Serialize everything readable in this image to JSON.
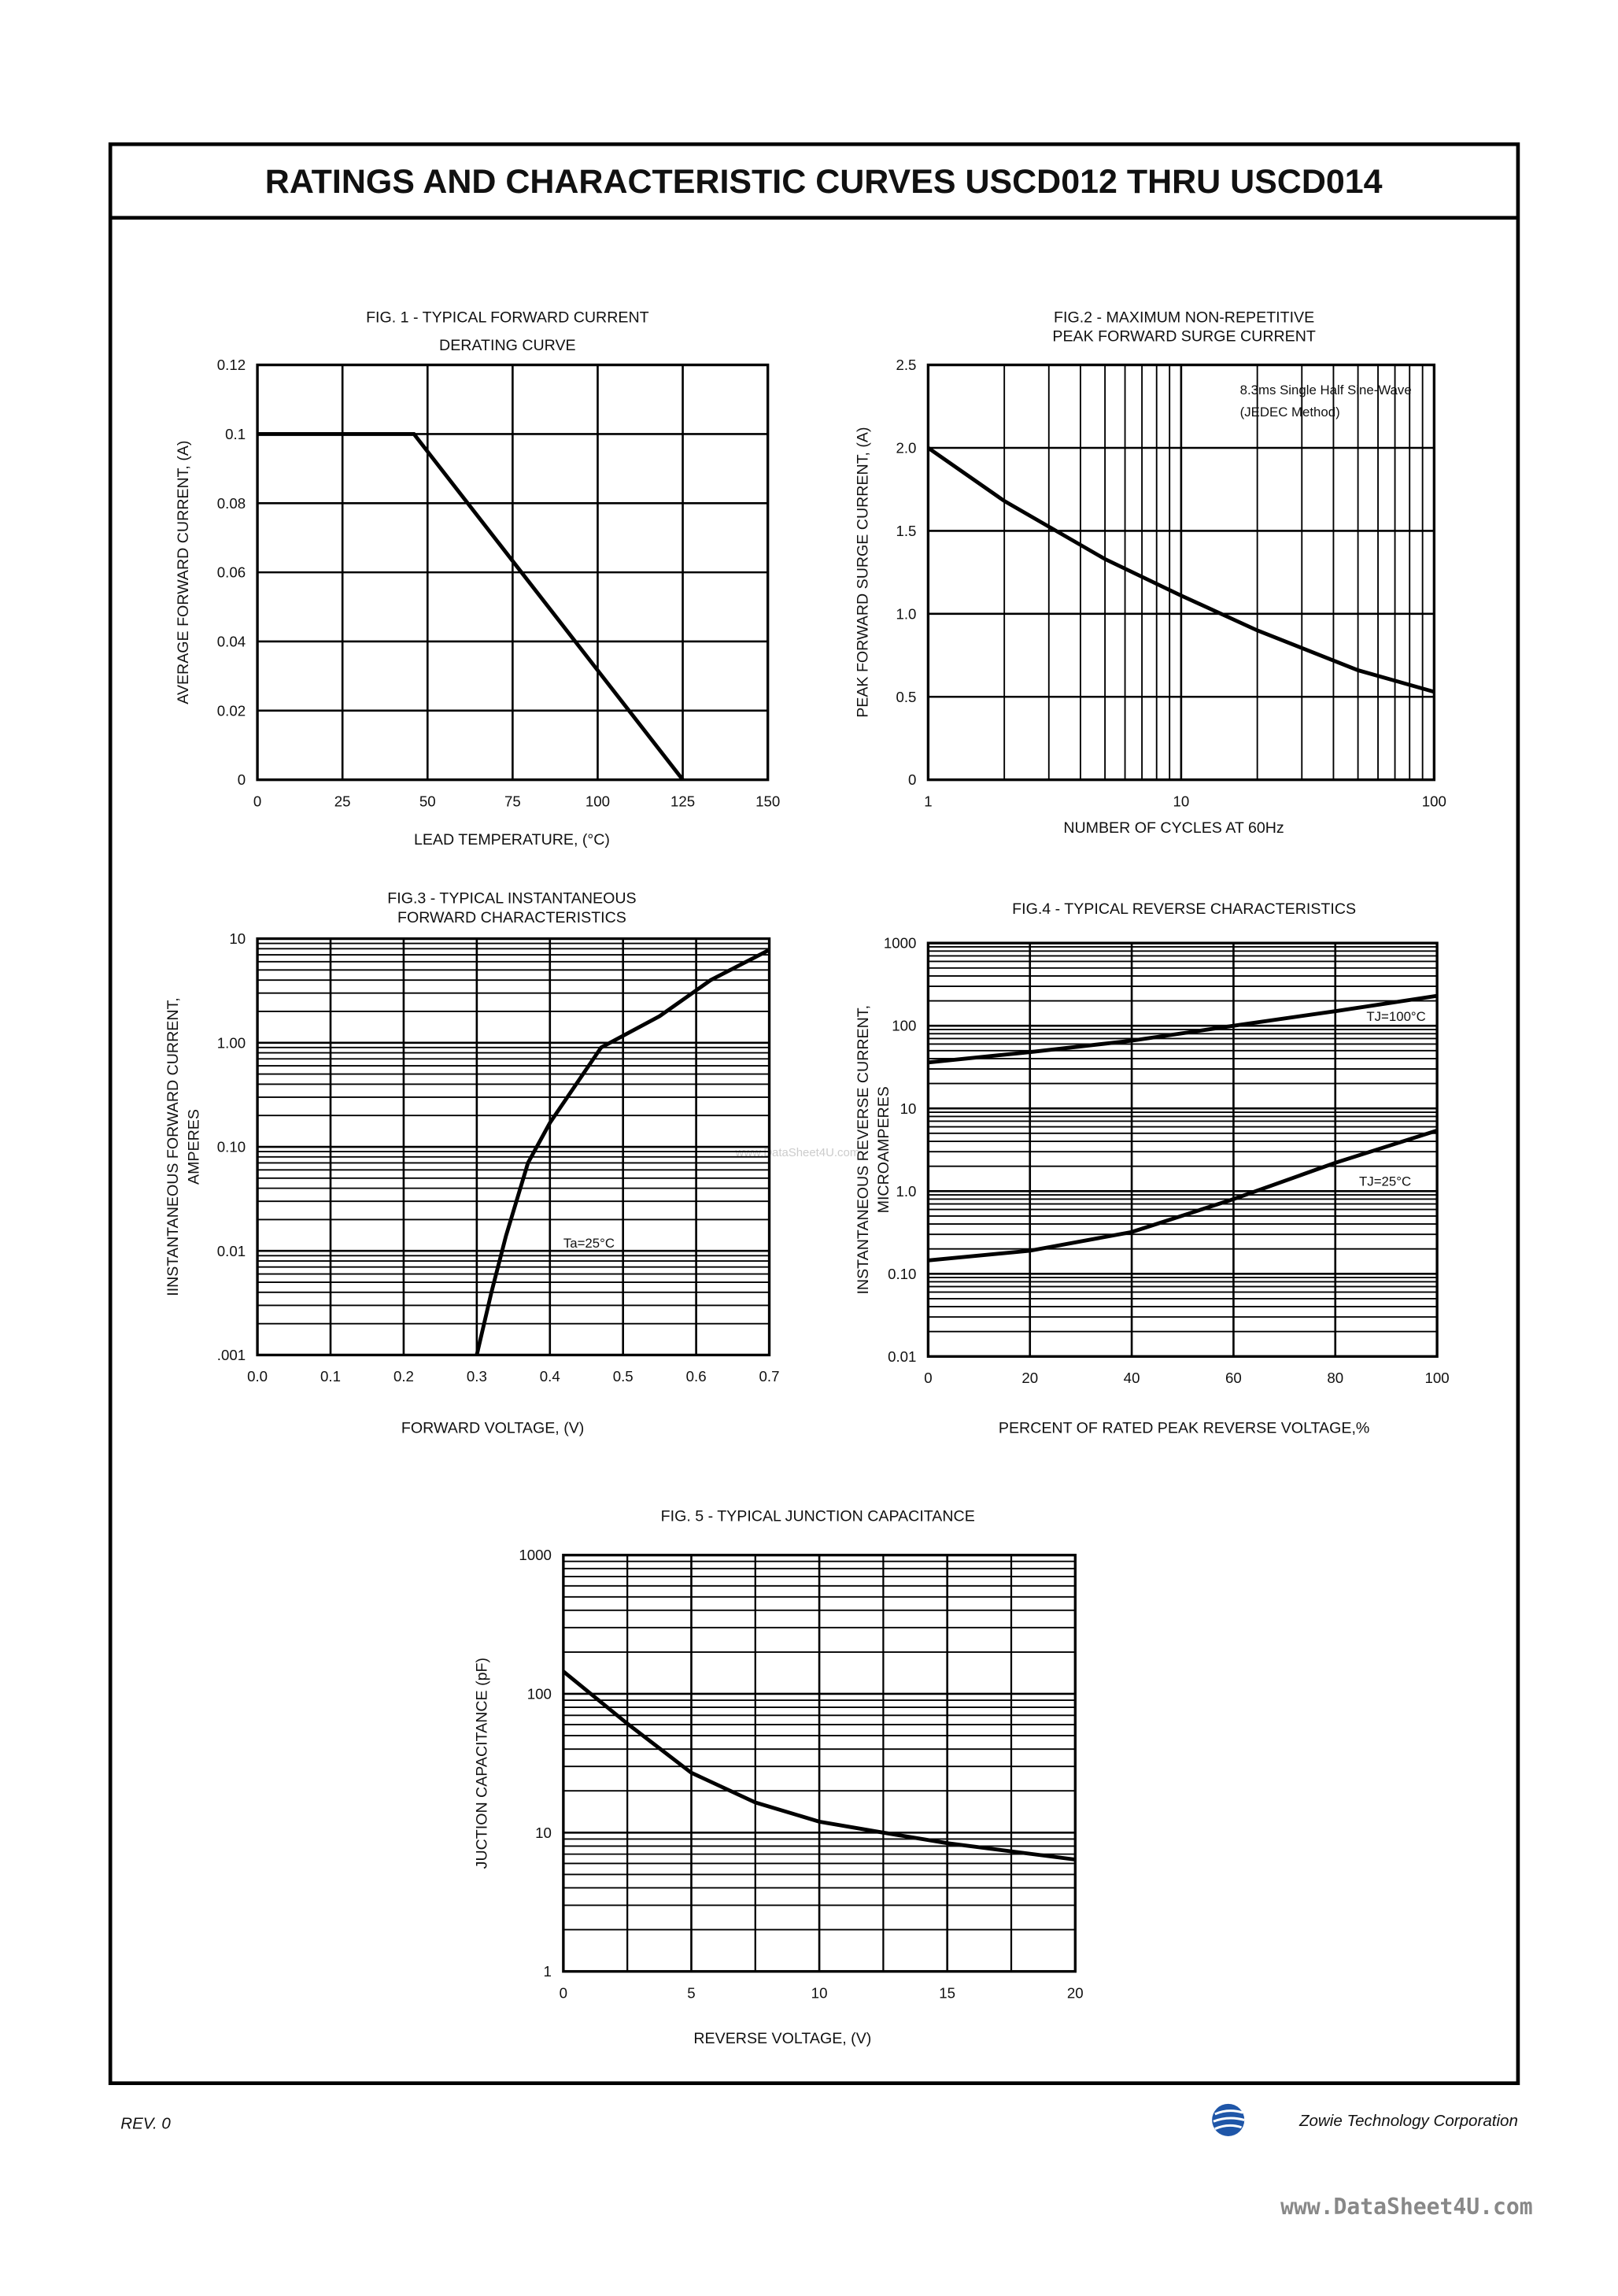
{
  "header": {
    "title": "RATINGS AND CHARACTERISTIC CURVES USCD012 THRU USCD014"
  },
  "chart_data": [
    {
      "type": "line",
      "title": [
        "FIG. 1  - TYPICAL FORWARD CURRENT",
        "DERATING CURVE"
      ],
      "ylabel": [
        "AVERAGE FORWARD CURRENT, (A)"
      ],
      "xlabel": "LEAD  TEMPERATURE, (°C)",
      "xscale": "linear",
      "yscale": "linear",
      "xlim": [
        0,
        150
      ],
      "xticks": [
        0,
        25,
        50,
        75,
        100,
        125,
        150
      ],
      "ylim": [
        0,
        0.12
      ],
      "yticks": [
        0,
        0.02,
        0.04,
        0.06,
        0.08,
        0.1,
        0.12
      ],
      "grid": true,
      "x": [
        0,
        46,
        125
      ],
      "series": [
        {
          "color": "#000000",
          "values": [
            0.1,
            0.1,
            0
          ]
        }
      ]
    },
    {
      "type": "line",
      "title": [
        "FIG.2 - MAXIMUM NON-REPETITIVE",
        "PEAK FORWARD SURGE CURRENT"
      ],
      "ylabel": [
        "PEAK FORWARD SURGE CURRENT, (A)"
      ],
      "xlabel": "NUMBER OF CYCLES AT 60Hz",
      "annotations": [
        "8.3ms Single Half Sine-Wave",
        "(JEDEC Method)"
      ],
      "xscale": "log",
      "yscale": "linear",
      "xlim": [
        1,
        100
      ],
      "xticks": [
        1,
        10,
        100
      ],
      "ylim": [
        0,
        2.5
      ],
      "yticks": [
        0,
        0.5,
        {
          "value": 1,
          "label": "1.0"
        },
        1.5,
        {
          "value": 2,
          "label": "2.0"
        },
        2.5
      ],
      "grid": true,
      "x": [
        1,
        2,
        5,
        10,
        20,
        50,
        100
      ],
      "series": [
        {
          "color": "#000000",
          "values": [
            2.0,
            1.68,
            1.33,
            1.11,
            0.9,
            0.66,
            0.53
          ]
        }
      ]
    },
    {
      "type": "line",
      "title": [
        "FIG.3 - TYPICAL INSTANTANEOUS",
        "FORWARD CHARACTERISTICS"
      ],
      "ylabel": [
        "IINSTANTANEOUS FORWARD CURRENT,",
        "AMPERES"
      ],
      "xlabel": "FORWARD  VOLTAGE, (V)",
      "annotations": [
        "Ta=25°C"
      ],
      "xscale": "linear",
      "yscale": "log",
      "xlim": [
        0,
        0.7
      ],
      "xticks": [
        {
          "value": 0,
          "label": "0.0"
        },
        0.1,
        0.2,
        0.3,
        0.4,
        0.5,
        0.6,
        0.7
      ],
      "ylim": [
        0.001,
        10
      ],
      "yticks": [
        {
          "value": 0.001,
          "label": ".001"
        },
        0.01,
        {
          "value": 0.1,
          "label": "0.10"
        },
        {
          "value": 1,
          "label": "1.00"
        },
        10
      ],
      "grid": true,
      "x": [
        0.3,
        0.32,
        0.34,
        0.37,
        0.4,
        0.47,
        0.55,
        0.62,
        0.7
      ],
      "series": [
        {
          "color": "#000000",
          "values": [
            0.001,
            0.004,
            0.014,
            0.07,
            0.17,
            0.9,
            1.8,
            4.0,
            7.8
          ]
        }
      ]
    },
    {
      "type": "line",
      "title": [
        "FIG.4 - TYPICAL REVERSE CHARACTERISTICS"
      ],
      "ylabel": [
        "INSTANTANEOUS REVERSE CURRENT,",
        "MICROAMPERES"
      ],
      "xlabel": "PERCENT OF RATED PEAK REVERSE VOLTAGE,%",
      "xscale": "linear",
      "yscale": "log",
      "xlim": [
        0,
        100
      ],
      "xticks": [
        0,
        20,
        40,
        60,
        80,
        100
      ],
      "ylim": [
        0.01,
        1000
      ],
      "yticks": [
        0.01,
        {
          "value": 0.1,
          "label": "0.10"
        },
        {
          "value": 1,
          "label": "1.0"
        },
        10,
        100,
        1000
      ],
      "grid": true,
      "x": [
        0,
        20,
        40,
        60,
        80,
        100
      ],
      "series": [
        {
          "name": "TJ=100°C",
          "color": "#000000",
          "values": [
            36,
            48,
            66,
            100,
            150,
            230
          ]
        },
        {
          "name": "TJ=25°C",
          "color": "#000000",
          "values": [
            0.145,
            0.19,
            0.32,
            0.8,
            2.2,
            5.4
          ]
        }
      ]
    },
    {
      "type": "line",
      "title": [
        "FIG. 5 - TYPICAL JUNCTION CAPACITANCE"
      ],
      "ylabel": [
        "JUCTION CAPACITANCE  (pF)"
      ],
      "xlabel": "REVERSE  VOLTAGE, (V)",
      "xscale": "linear",
      "yscale": "log",
      "xlim": [
        0,
        20
      ],
      "xticks": [
        0,
        5,
        10,
        15,
        20
      ],
      "ylim": [
        1,
        1000
      ],
      "yticks": [
        1,
        10,
        100,
        1000
      ],
      "grid": true,
      "x": [
        0,
        2.5,
        5,
        7.5,
        10,
        12.5,
        15,
        20
      ],
      "series": [
        {
          "color": "#000000",
          "values": [
            145,
            61,
            27,
            16.5,
            12,
            10,
            8.4,
            6.4
          ]
        }
      ]
    }
  ],
  "footer": {
    "revision": "REV. 0",
    "company": "Zowie Technology Corporation",
    "website": "www.DataSheet4U.com",
    "watermark": "www.DataSheet4U.com"
  }
}
